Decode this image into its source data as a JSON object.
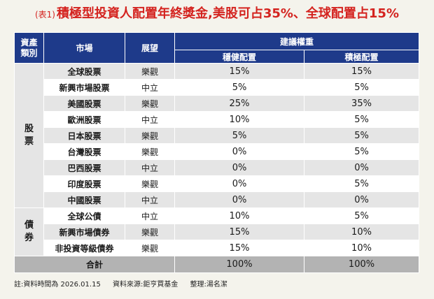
{
  "title": {
    "prefix": "(表1)",
    "main": "積極型投資人配置年終獎金,美股可占35%、全球配置占15%"
  },
  "headers": {
    "asset_class": "資產類別",
    "market": "市場",
    "outlook": "展望",
    "recommended": "建議權重",
    "conservative": "穩健配置",
    "aggressive": "積極配置"
  },
  "categories": {
    "stocks": "股票",
    "bonds": "債券"
  },
  "rows": [
    {
      "market": "全球股票",
      "outlook": "樂觀",
      "conservative": "15%",
      "aggressive": "15%"
    },
    {
      "market": "新興市場股票",
      "outlook": "中立",
      "conservative": "5%",
      "aggressive": "5%"
    },
    {
      "market": "美國股票",
      "outlook": "樂觀",
      "conservative": "25%",
      "aggressive": "35%"
    },
    {
      "market": "歐洲股票",
      "outlook": "中立",
      "conservative": "10%",
      "aggressive": "5%"
    },
    {
      "market": "日本股票",
      "outlook": "樂觀",
      "conservative": "5%",
      "aggressive": "5%"
    },
    {
      "market": "台灣股票",
      "outlook": "樂觀",
      "conservative": "0%",
      "aggressive": "5%"
    },
    {
      "market": "巴西股票",
      "outlook": "中立",
      "conservative": "0%",
      "aggressive": "0%"
    },
    {
      "market": "印度股票",
      "outlook": "樂觀",
      "conservative": "0%",
      "aggressive": "5%"
    },
    {
      "market": "中國股票",
      "outlook": "中立",
      "conservative": "0%",
      "aggressive": "0%"
    },
    {
      "market": "全球公債",
      "outlook": "中立",
      "conservative": "10%",
      "aggressive": "5%"
    },
    {
      "market": "新興市場債券",
      "outlook": "樂觀",
      "conservative": "15%",
      "aggressive": "10%"
    },
    {
      "market": "非投資等級債券",
      "outlook": "樂觀",
      "conservative": "15%",
      "aggressive": "10%"
    }
  ],
  "total": {
    "label": "合計",
    "conservative": "100%",
    "aggressive": "100%"
  },
  "footnote": {
    "date": "註:資料時間為 2026.01.15",
    "source": "資料來源:鉅亨買基金",
    "editor": "整理:湯名潔"
  },
  "colors": {
    "header_bg": "#1e3a8a",
    "title": "#d4231f",
    "row_gray": "#e5e5e5",
    "total_bg": "#b3b3b3"
  }
}
